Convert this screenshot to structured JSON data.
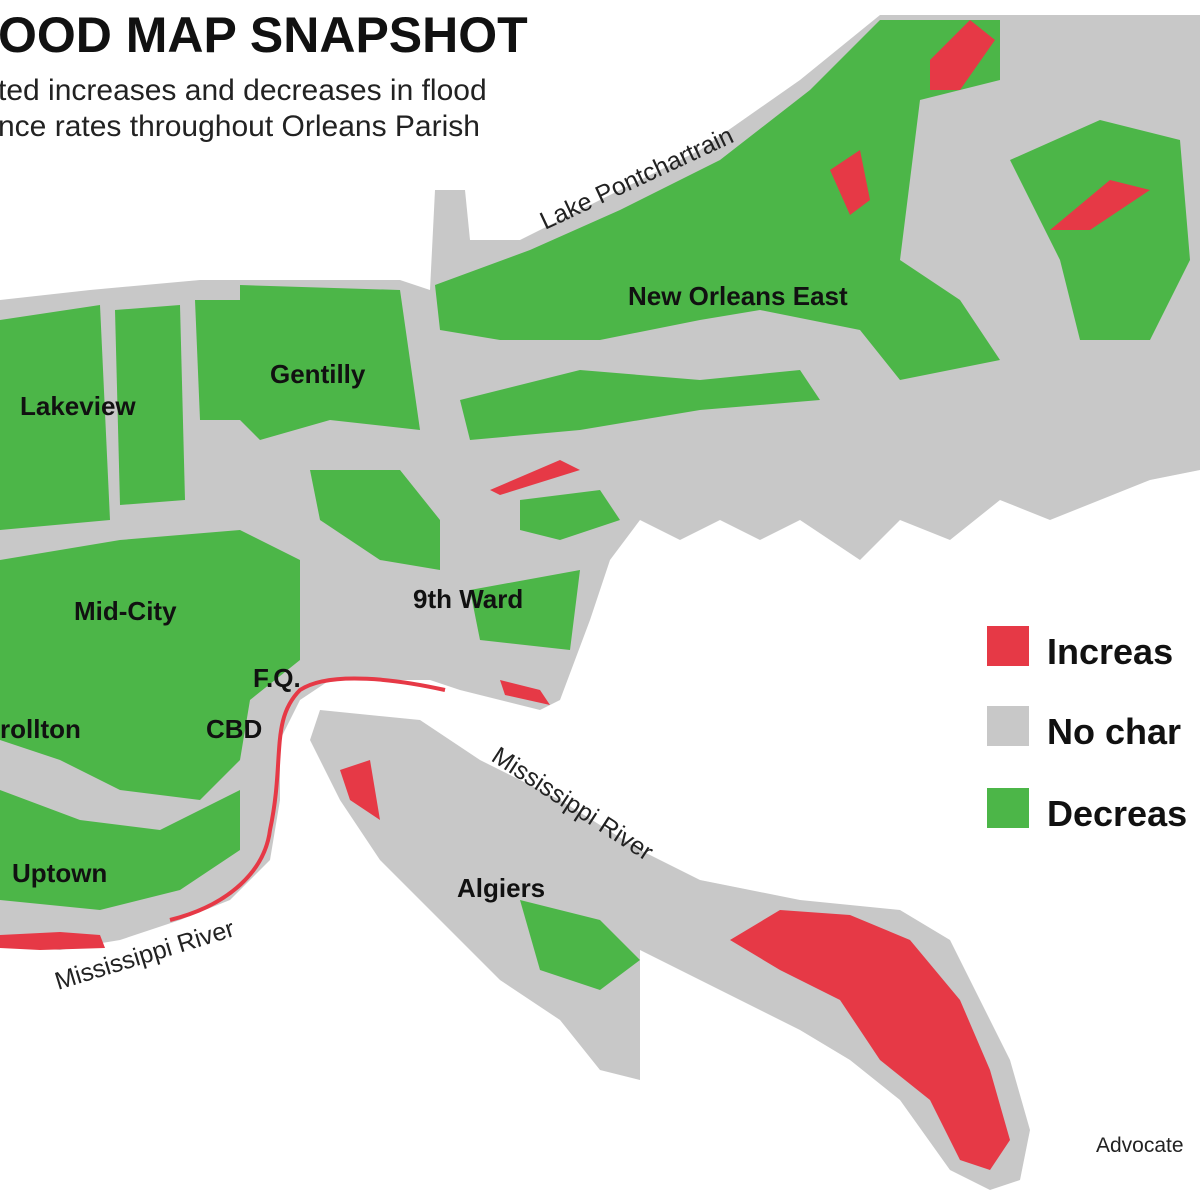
{
  "header": {
    "title": "OOD MAP SNAPSHOT",
    "subtitle_lines": [
      "ted increases and decreases in flood",
      "nce rates throughout Orleans Parish"
    ]
  },
  "map_labels": [
    "Lake Pontchartrain",
    "New Orleans East",
    "Gentilly",
    "Lakeview",
    "Mid-City",
    "9th Ward",
    "F.Q.",
    "CBD",
    "rollton",
    "Uptown",
    "Algiers",
    "Mississippi River",
    "Mississippi River"
  ],
  "legend": {
    "items": [
      "Increas",
      "No char",
      "Decreas"
    ]
  },
  "credit": "Advocate"
}
